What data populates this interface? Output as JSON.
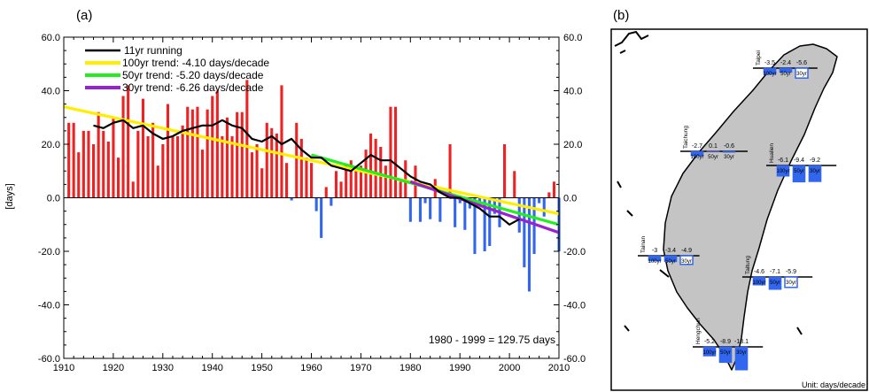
{
  "panel_a_label": "(a)",
  "panel_b_label": "(b)",
  "annotation": "1980 - 1999 = 129.75 days",
  "unit_label": "Unit: days/decade",
  "chart_data": [
    {
      "type": "bar",
      "title": "",
      "xlabel": "",
      "ylabel": "[days]",
      "xlim": [
        1910,
        2010
      ],
      "ylim": [
        -60,
        60
      ],
      "x_ticks": [
        "1910",
        "1920",
        "1930",
        "1940",
        "1950",
        "1960",
        "1970",
        "1980",
        "1990",
        "2000",
        "2010"
      ],
      "y_ticks": [
        "60.0",
        "40.0",
        "20.0",
        "0.0",
        "-20.0",
        "-40.0",
        "-60.0"
      ],
      "grid": false,
      "legend_position": "top-left",
      "positive_color": "#ee2222",
      "negative_color": "#3366ee",
      "bars": {
        "x": [
          1911,
          1912,
          1913,
          1914,
          1915,
          1916,
          1917,
          1918,
          1919,
          1920,
          1921,
          1922,
          1923,
          1924,
          1925,
          1926,
          1927,
          1928,
          1929,
          1930,
          1931,
          1932,
          1933,
          1934,
          1935,
          1936,
          1937,
          1938,
          1939,
          1940,
          1941,
          1942,
          1943,
          1944,
          1945,
          1946,
          1947,
          1948,
          1949,
          1950,
          1951,
          1952,
          1953,
          1954,
          1955,
          1956,
          1957,
          1958,
          1959,
          1960,
          1961,
          1962,
          1963,
          1964,
          1965,
          1966,
          1967,
          1968,
          1969,
          1970,
          1971,
          1972,
          1973,
          1974,
          1975,
          1976,
          1977,
          1978,
          1979,
          1980,
          1981,
          1982,
          1983,
          1984,
          1985,
          1986,
          1987,
          1988,
          1989,
          1990,
          1991,
          1992,
          1993,
          1994,
          1995,
          1996,
          1997,
          1998,
          1999,
          2000,
          2001,
          2002,
          2003,
          2004,
          2005,
          2006,
          2007,
          2008,
          2009,
          2010
        ],
        "values": [
          28,
          28,
          17,
          25,
          25,
          20,
          32,
          25,
          21,
          30,
          15,
          38,
          42,
          6,
          25,
          37,
          23,
          28,
          12,
          20,
          35,
          23,
          23,
          27,
          34,
          33,
          34,
          18,
          33,
          38,
          40,
          23,
          30,
          23,
          32,
          32,
          44,
          17,
          20,
          11,
          28,
          26,
          24,
          42,
          13,
          -1,
          28,
          22,
          15,
          13,
          -5,
          -15,
          4,
          -3,
          10,
          6,
          12,
          14,
          10,
          12,
          18,
          24,
          22,
          19,
          12,
          34,
          34,
          6,
          14,
          -9,
          12,
          -9,
          -2,
          -8,
          7,
          -9,
          0,
          20,
          -11,
          -2,
          -12,
          -4,
          -21,
          -3,
          -20,
          -18,
          -6,
          -11,
          20,
          0,
          10,
          -13,
          -26,
          -35,
          -21,
          -2,
          -7,
          2,
          6,
          -20
        ]
      },
      "series": [
        {
          "name": "11yr running",
          "color": "#000000",
          "x": [
            1916,
            1918,
            1920,
            1922,
            1924,
            1926,
            1928,
            1930,
            1932,
            1934,
            1936,
            1938,
            1940,
            1942,
            1944,
            1946,
            1948,
            1950,
            1952,
            1954,
            1956,
            1958,
            1960,
            1962,
            1964,
            1966,
            1968,
            1970,
            1972,
            1974,
            1976,
            1978,
            1980,
            1982,
            1984,
            1986,
            1988,
            1990,
            1992,
            1994,
            1996,
            1998,
            2000,
            2002
          ],
          "values": [
            27,
            26,
            28,
            29,
            26,
            27,
            24,
            22,
            23,
            25,
            26,
            27,
            27,
            29,
            27,
            26,
            22,
            21,
            23,
            20,
            22,
            18,
            15,
            15,
            12,
            11,
            10,
            13,
            16,
            14,
            14,
            11,
            8,
            6,
            5,
            2,
            0,
            0,
            -2,
            -4,
            -7,
            -7,
            -10,
            -8
          ]
        },
        {
          "name": "100yr trend: -4.10 days/decade",
          "color": "#ffee00",
          "x": [
            1910,
            2010
          ],
          "values": [
            34,
            -6
          ]
        },
        {
          "name": "50yr trend: -5.20 days/decade",
          "color": "#22ee22",
          "x": [
            1960,
            2010
          ],
          "values": [
            16,
            -10
          ]
        },
        {
          "name": "30yr trend: -6.26 days/decade",
          "color": "#9922cc",
          "x": [
            1980,
            2010
          ],
          "values": [
            6,
            -13
          ]
        }
      ]
    },
    {
      "type": "bar",
      "title": "",
      "segments": [
        "100yr",
        "50yr",
        "30yr"
      ],
      "stations": [
        {
          "name": "Taipei",
          "values": [
            -3.5,
            -2.4,
            -5.6
          ],
          "filled": [
            true,
            true,
            false
          ]
        },
        {
          "name": "Taichung",
          "values": [
            -2.7,
            0.1,
            -0.6
          ],
          "filled": [
            true,
            true,
            true
          ]
        },
        {
          "name": "Hualien",
          "values": [
            -6.1,
            -9.4,
            -9.2
          ],
          "filled": [
            true,
            true,
            true
          ]
        },
        {
          "name": "Tainan",
          "values": [
            -3,
            -3.4,
            -4.9
          ],
          "filled": [
            true,
            true,
            false
          ]
        },
        {
          "name": "Taitung",
          "values": [
            -4.6,
            -7.1,
            -5.9
          ],
          "filled": [
            true,
            true,
            false
          ]
        },
        {
          "name": "Hengchun",
          "values": [
            -5.2,
            -8.9,
            -13.1
          ],
          "filled": [
            true,
            true,
            true
          ]
        }
      ]
    }
  ]
}
